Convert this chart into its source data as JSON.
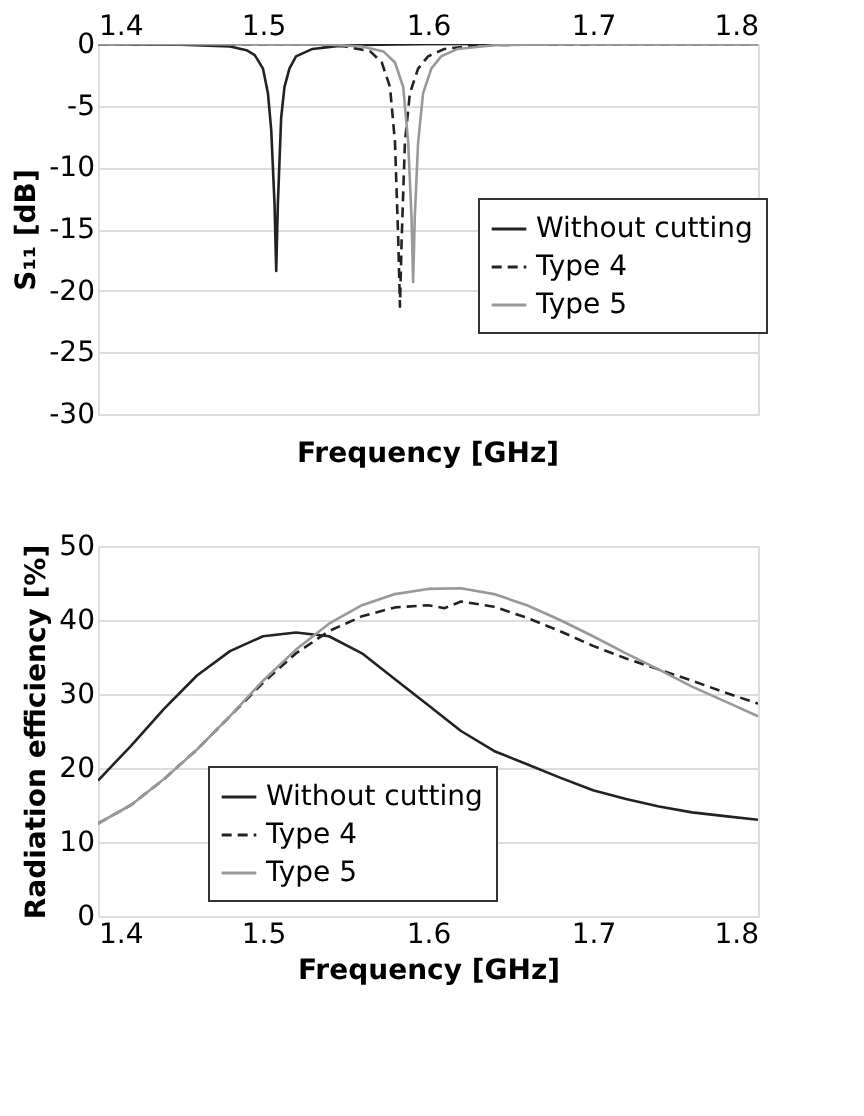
{
  "chart_data": [
    {
      "type": "line",
      "ylabel": "S₁₁ [dB]",
      "xlabel": "Frequency [GHz]",
      "xlim": [
        1.4,
        1.8
      ],
      "xticks": [
        1.4,
        1.5,
        1.6,
        1.7,
        1.8
      ],
      "ylim": [
        -30,
        0
      ],
      "yticks": [
        -30,
        -25,
        -20,
        -15,
        -10,
        -5,
        0
      ],
      "grid": "y",
      "legend": "right",
      "series": [
        {
          "name": "Without cutting",
          "color": "#222222",
          "line_style": "solid",
          "x": [
            1.4,
            1.45,
            1.48,
            1.49,
            1.495,
            1.5,
            1.503,
            1.505,
            1.507,
            1.508,
            1.509,
            1.511,
            1.513,
            1.516,
            1.52,
            1.53,
            1.55,
            1.6,
            1.8
          ],
          "values": [
            0,
            -0.05,
            -0.2,
            -0.5,
            -0.9,
            -2,
            -4,
            -7,
            -13,
            -18.4,
            -13,
            -6,
            -3.5,
            -2,
            -1,
            -0.4,
            -0.1,
            0,
            0
          ]
        },
        {
          "name": "Type 4",
          "color": "#222222",
          "line_style": "dashed",
          "x": [
            1.4,
            1.53,
            1.55,
            1.565,
            1.572,
            1.577,
            1.58,
            1.582,
            1.583,
            1.584,
            1.586,
            1.589,
            1.594,
            1.6,
            1.61,
            1.63,
            1.7,
            1.8
          ],
          "values": [
            0,
            -0.05,
            -0.2,
            -0.6,
            -1.5,
            -3.5,
            -8,
            -16,
            -21.3,
            -16,
            -8,
            -4,
            -2,
            -1,
            -0.4,
            -0.1,
            0,
            0
          ]
        },
        {
          "name": "Type 5",
          "color": "#999999",
          "line_style": "solid",
          "x": [
            1.4,
            1.54,
            1.56,
            1.573,
            1.58,
            1.585,
            1.588,
            1.59,
            1.591,
            1.592,
            1.594,
            1.597,
            1.602,
            1.608,
            1.618,
            1.64,
            1.7,
            1.8
          ],
          "values": [
            0,
            -0.05,
            -0.2,
            -0.6,
            -1.5,
            -3.5,
            -8,
            -14,
            -19.3,
            -14,
            -8,
            -4,
            -2,
            -1,
            -0.4,
            -0.1,
            0,
            0
          ]
        }
      ]
    },
    {
      "type": "line",
      "ylabel": "Radiation efficiency [%]",
      "xlabel": "Frequency [GHz]",
      "xlim": [
        1.4,
        1.8
      ],
      "xticks": [
        1.4,
        1.5,
        1.6,
        1.7,
        1.8
      ],
      "ylim": [
        0,
        50
      ],
      "yticks": [
        0,
        10,
        20,
        30,
        40,
        50
      ],
      "grid": "y",
      "legend": "bottom",
      "series": [
        {
          "name": "Without cutting",
          "color": "#222222",
          "line_style": "solid",
          "x": [
            1.4,
            1.42,
            1.44,
            1.46,
            1.48,
            1.5,
            1.52,
            1.54,
            1.56,
            1.58,
            1.6,
            1.62,
            1.64,
            1.66,
            1.68,
            1.7,
            1.72,
            1.74,
            1.76,
            1.78,
            1.8
          ],
          "values": [
            18.3,
            23,
            28,
            32.5,
            35.8,
            37.8,
            38.3,
            37.8,
            35.5,
            32,
            28.5,
            25,
            22.3,
            20.5,
            18.7,
            17,
            15.8,
            14.8,
            14,
            13.5,
            13
          ]
        },
        {
          "name": "Type 4",
          "color": "#222222",
          "line_style": "dashed",
          "x": [
            1.4,
            1.42,
            1.44,
            1.46,
            1.48,
            1.5,
            1.52,
            1.54,
            1.56,
            1.58,
            1.6,
            1.61,
            1.62,
            1.64,
            1.66,
            1.68,
            1.7,
            1.72,
            1.74,
            1.76,
            1.78,
            1.8
          ],
          "values": [
            12.5,
            15,
            18.5,
            22.5,
            27,
            31.5,
            35.5,
            38.5,
            40.5,
            41.7,
            42,
            41.6,
            42.5,
            41.8,
            40.3,
            38.5,
            36.5,
            34.8,
            33.3,
            31.8,
            30.2,
            28.7
          ]
        },
        {
          "name": "Type 5",
          "color": "#999999",
          "line_style": "solid",
          "x": [
            1.4,
            1.42,
            1.44,
            1.46,
            1.48,
            1.5,
            1.52,
            1.54,
            1.56,
            1.58,
            1.6,
            1.62,
            1.64,
            1.66,
            1.68,
            1.7,
            1.72,
            1.74,
            1.76,
            1.78,
            1.8
          ],
          "values": [
            12.5,
            15,
            18.5,
            22.5,
            27,
            31.8,
            36,
            39.5,
            42,
            43.5,
            44.2,
            44.3,
            43.5,
            42,
            40,
            37.8,
            35.5,
            33.3,
            31,
            29,
            27
          ]
        }
      ]
    }
  ]
}
